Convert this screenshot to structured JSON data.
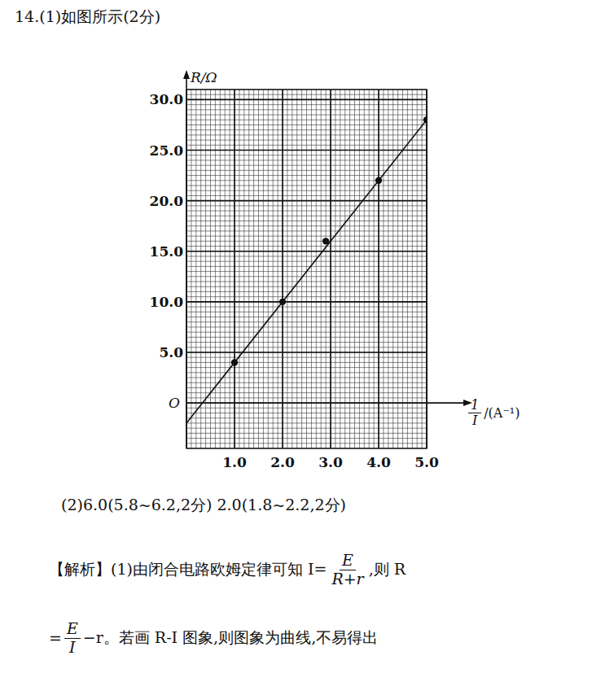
{
  "header": {
    "text": "14.(1)如图所示(2分)"
  },
  "chart_data": {
    "type": "scatter",
    "y_label": "R/Ω",
    "x_label": [
      {
        "num": "1",
        "den": "I"
      },
      {
        "text": "/(A⁻¹)"
      }
    ],
    "origin_label": "O",
    "xlim": [
      0,
      5.0
    ],
    "ylim": [
      -4.5,
      31
    ],
    "xticks": [
      {
        "value": 1,
        "label": "1.0"
      },
      {
        "value": 2,
        "label": "2.0"
      },
      {
        "value": 3,
        "label": "3.0"
      },
      {
        "value": 4,
        "label": "4.0"
      },
      {
        "value": 5,
        "label": "5.0"
      }
    ],
    "yticks": [
      {
        "value": 5,
        "label": "5.0"
      },
      {
        "value": 10,
        "label": "10.0"
      },
      {
        "value": 15,
        "label": "15.0"
      },
      {
        "value": 20,
        "label": "20.0"
      },
      {
        "value": 25,
        "label": "25.0"
      },
      {
        "value": 30,
        "label": "30.0"
      }
    ],
    "grid": true,
    "series": [
      {
        "type": "scatter",
        "x": [
          1.0,
          2.0,
          2.9,
          4.0,
          5.0
        ],
        "values": [
          4.0,
          10.0,
          16.0,
          22.0,
          28.0
        ],
        "color": "#111111",
        "marker": "circle"
      },
      {
        "type": "line",
        "x": [
          0,
          5.0
        ],
        "values": [
          -2.0,
          28.0
        ],
        "color": "#111111",
        "line_style": "solid"
      }
    ]
  },
  "answer": {
    "text": "(2)6.0(5.8~6.2,2分)  2.0(1.8~2.2,2分)"
  },
  "analysis": [
    [
      {
        "text": "【解析】(1)由闭合电路欧姆定律可知 I="
      },
      {
        "num": "E",
        "den": "R+r"
      },
      {
        "text": ",则 R"
      }
    ],
    [
      {
        "text": "="
      },
      {
        "num": "E",
        "den": "I"
      },
      {
        "text": "−r。若画 R-I 图象,则图象为曲线,不易得出"
      }
    ]
  ]
}
